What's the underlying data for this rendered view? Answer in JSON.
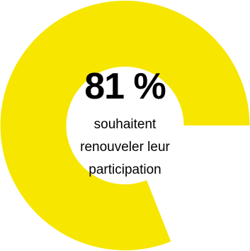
{
  "chart_data": {
    "type": "pie",
    "variant": "donut",
    "value_percent": 81,
    "remaining_percent": 19,
    "center_value_label": "81 %",
    "center_caption_lines": [
      "souhaitent",
      "renouveler leur",
      "participation"
    ],
    "colors": {
      "filled": "#f7e600",
      "remaining": "#ffffff",
      "text": "#000000"
    }
  }
}
